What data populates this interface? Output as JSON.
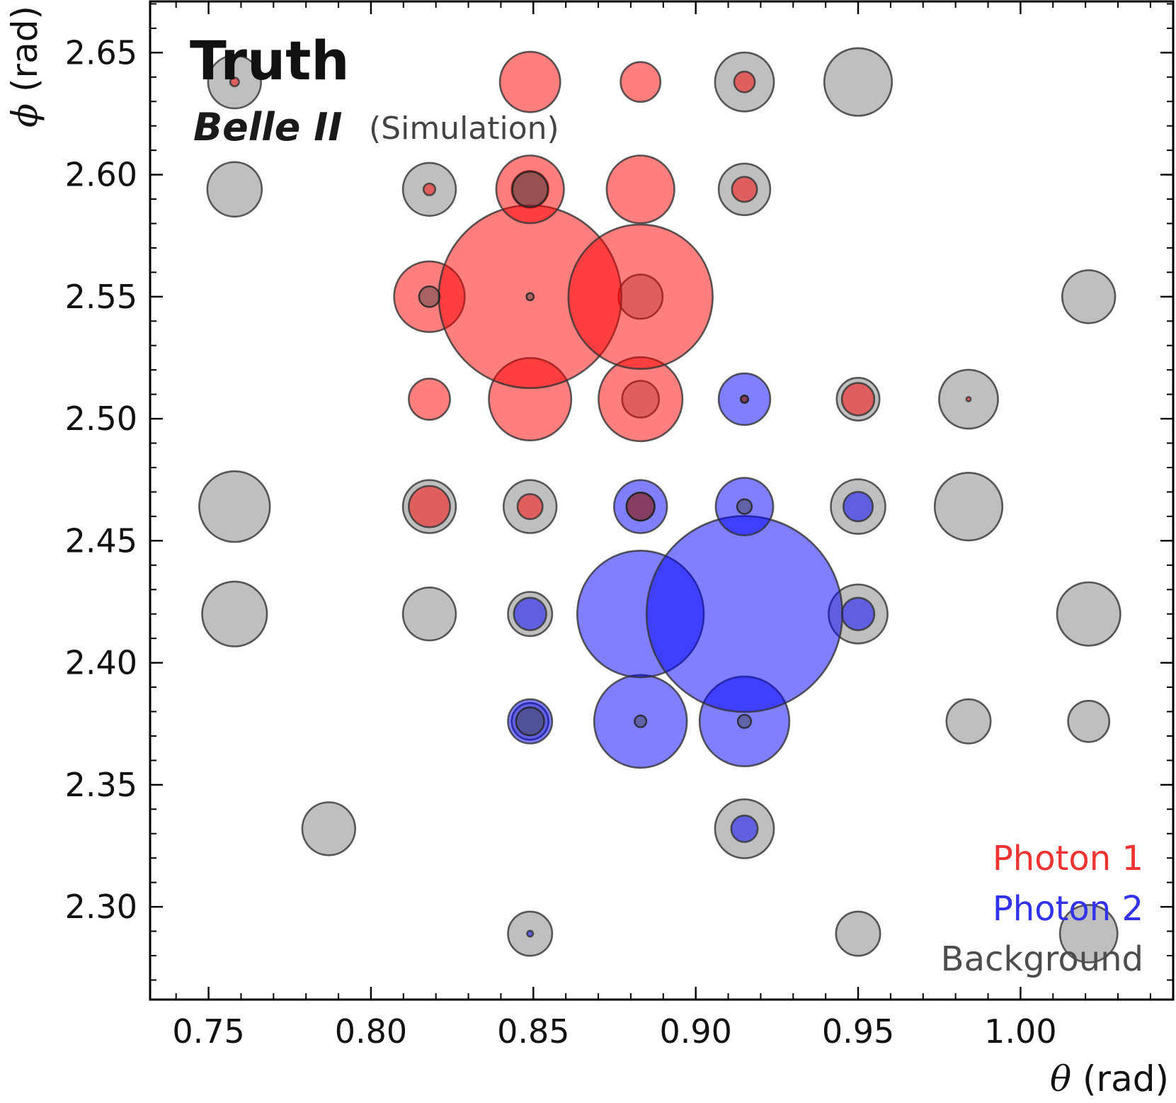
{
  "chart_data": {
    "type": "scatter",
    "title": "Truth",
    "experiment": "Belle II",
    "subtitle": "(Simulation)",
    "xlabel": "θ (rad)",
    "ylabel": "ϕ (rad)",
    "xlim": [
      0.732,
      1.047
    ],
    "ylim": [
      2.671,
      2.262
    ],
    "x_ticks": [
      "0.75",
      "0.80",
      "0.85",
      "0.90",
      "0.95",
      "1.00"
    ],
    "y_ticks": [
      "2.30",
      "2.35",
      "2.40",
      "2.45",
      "2.50",
      "2.55",
      "2.60",
      "2.65"
    ],
    "legend_position": "bottom-right",
    "size_unit": "relative energy (marker radius)",
    "series": [
      {
        "name": "Background",
        "color": "#808080",
        "points": [
          [
            0.849,
            2.289,
            0.6
          ],
          [
            0.95,
            2.289,
            0.6
          ],
          [
            1.021,
            2.289,
            0.78
          ],
          [
            0.787,
            2.332,
            0.72
          ],
          [
            0.915,
            2.332,
            0.8
          ],
          [
            0.849,
            2.376,
            0.5
          ],
          [
            0.984,
            2.376,
            0.6
          ],
          [
            1.021,
            2.376,
            0.56
          ],
          [
            0.758,
            2.42,
            0.88
          ],
          [
            0.818,
            2.42,
            0.72
          ],
          [
            0.849,
            2.42,
            0.6
          ],
          [
            0.95,
            2.42,
            0.8
          ],
          [
            1.021,
            2.42,
            0.86
          ],
          [
            0.758,
            2.464,
            0.96
          ],
          [
            0.818,
            2.464,
            0.72
          ],
          [
            0.849,
            2.464,
            0.72
          ],
          [
            0.95,
            2.464,
            0.74
          ],
          [
            0.984,
            2.464,
            0.92
          ],
          [
            0.883,
            2.508,
            0.5
          ],
          [
            0.95,
            2.508,
            0.58
          ],
          [
            0.984,
            2.508,
            0.8
          ],
          [
            0.883,
            2.55,
            0.6
          ],
          [
            1.021,
            2.55,
            0.72
          ],
          [
            0.758,
            2.594,
            0.74
          ],
          [
            0.818,
            2.594,
            0.72
          ],
          [
            0.849,
            2.594,
            0.5
          ],
          [
            0.915,
            2.594,
            0.7
          ],
          [
            0.758,
            2.638,
            0.72
          ],
          [
            0.915,
            2.638,
            0.8
          ],
          [
            0.95,
            2.638,
            0.92
          ]
        ]
      },
      {
        "name": "Photon 2",
        "color": "#0000ff",
        "points": [
          [
            0.849,
            2.289,
            0.08
          ],
          [
            0.915,
            2.332,
            0.36
          ],
          [
            0.849,
            2.376,
            0.6
          ],
          [
            0.883,
            2.376,
            1.26
          ],
          [
            0.915,
            2.376,
            1.22
          ],
          [
            0.849,
            2.42,
            0.44
          ],
          [
            0.883,
            2.42,
            1.72
          ],
          [
            0.915,
            2.42,
            2.66
          ],
          [
            0.95,
            2.42,
            0.44
          ],
          [
            0.883,
            2.464,
            0.72
          ],
          [
            0.915,
            2.464,
            0.78
          ],
          [
            0.95,
            2.464,
            0.4
          ],
          [
            0.915,
            2.508,
            0.7
          ]
        ]
      },
      {
        "name": "Photon 1",
        "color": "#ff0000",
        "points": [
          [
            0.818,
            2.464,
            0.56
          ],
          [
            0.849,
            2.464,
            0.34
          ],
          [
            0.883,
            2.464,
            0.38
          ],
          [
            0.818,
            2.508,
            0.56
          ],
          [
            0.849,
            2.508,
            1.12
          ],
          [
            0.883,
            2.508,
            1.14
          ],
          [
            0.915,
            2.508,
            0.1
          ],
          [
            0.95,
            2.508,
            0.44
          ],
          [
            0.984,
            2.508,
            0.06
          ],
          [
            0.818,
            2.55,
            0.96
          ],
          [
            0.849,
            2.55,
            2.48
          ],
          [
            0.883,
            2.55,
            1.96
          ],
          [
            0.818,
            2.594,
            0.16
          ],
          [
            0.849,
            2.594,
            0.92
          ],
          [
            0.883,
            2.594,
            0.92
          ],
          [
            0.915,
            2.594,
            0.34
          ],
          [
            0.758,
            2.638,
            0.12
          ],
          [
            0.849,
            2.638,
            0.82
          ],
          [
            0.883,
            2.638,
            0.54
          ],
          [
            0.915,
            2.638,
            0.28
          ]
        ]
      }
    ],
    "overlay_dots": [
      [
        0.849,
        2.376,
        0.38
      ],
      [
        0.883,
        2.376,
        0.16
      ],
      [
        0.915,
        2.376,
        0.18
      ],
      [
        0.883,
        2.464,
        0.38
      ],
      [
        0.915,
        2.464,
        0.2
      ],
      [
        0.915,
        2.508,
        0.1
      ],
      [
        0.849,
        2.55,
        0.1
      ],
      [
        0.818,
        2.55,
        0.28
      ],
      [
        0.849,
        2.594,
        0.48
      ]
    ]
  }
}
